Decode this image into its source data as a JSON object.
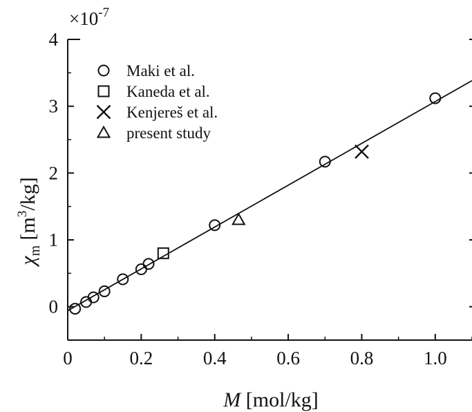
{
  "chart_data": {
    "type": "scatter",
    "xlabel": "M [mol/kg]",
    "ylabel": "χm [m3/kg]",
    "y_multiplier": "×10-7",
    "xlim": [
      0,
      1.1
    ],
    "ylim": [
      -0.5,
      4
    ],
    "x_ticks": [
      0,
      0.2,
      0.4,
      0.6,
      0.8,
      1.0
    ],
    "x_tick_labels": [
      "0",
      "0.2",
      "0.4",
      "0.6",
      "0.8",
      "1.0"
    ],
    "y_ticks": [
      0,
      1,
      2,
      3,
      4
    ],
    "y_tick_labels": [
      "0",
      "1",
      "2",
      "3",
      "4"
    ],
    "grid": false,
    "legend_position": "top-left",
    "series": [
      {
        "name": "Maki et al.",
        "marker": "circle",
        "x": [
          0.02,
          0.05,
          0.07,
          0.1,
          0.15,
          0.2,
          0.22,
          0.4,
          0.7,
          1.0
        ],
        "y": [
          -0.03,
          0.07,
          0.14,
          0.23,
          0.41,
          0.56,
          0.64,
          1.22,
          2.17,
          3.12
        ]
      },
      {
        "name": "Kaneda et al.",
        "marker": "square",
        "x": [
          0.26
        ],
        "y": [
          0.8
        ]
      },
      {
        "name": "Kenjereš et al.",
        "marker": "x",
        "x": [
          0.8
        ],
        "y": [
          2.32
        ]
      },
      {
        "name": "present study",
        "marker": "triangle",
        "x": [
          0.465
        ],
        "y": [
          1.3
        ]
      }
    ],
    "fit_line": {
      "slope": 3.13,
      "intercept": -0.06
    }
  }
}
